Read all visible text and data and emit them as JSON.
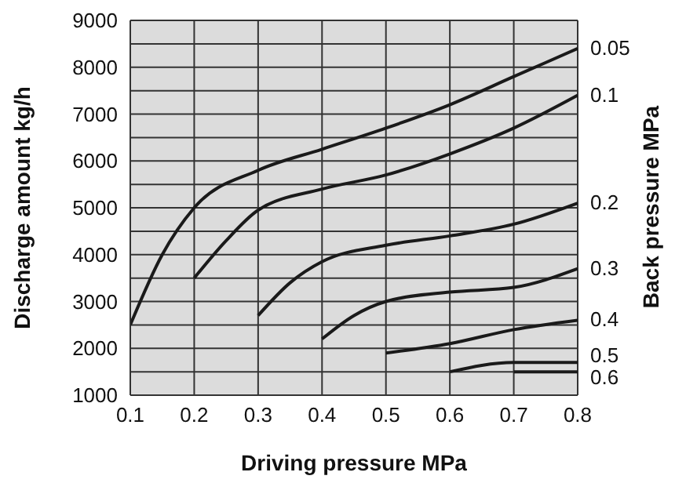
{
  "chart_data": {
    "type": "line",
    "xlabel": "Driving pressure MPa",
    "ylabel": "Discharge amount kg/h",
    "legend_title": "Back pressure MPa",
    "xlim": [
      0.1,
      0.8
    ],
    "xticks": [
      0.1,
      0.2,
      0.3,
      0.4,
      0.5,
      0.6,
      0.7,
      0.8
    ],
    "ylim": [
      1000,
      9000
    ],
    "yticks": [
      1000,
      {
        "value": 1500,
        "label": null
      },
      2000,
      {
        "value": 2500,
        "label": null
      },
      3000,
      {
        "value": 3500,
        "label": null
      },
      4000,
      {
        "value": 4500,
        "label": null
      },
      5000,
      {
        "value": 5500,
        "label": null
      },
      6000,
      {
        "value": 6500,
        "label": null
      },
      7000,
      {
        "value": 7500,
        "label": null
      },
      8000,
      {
        "value": 8500,
        "label": null
      },
      9000
    ],
    "grid": true,
    "marker": "none",
    "line_style": "solid",
    "series": [
      {
        "name": "0.05",
        "color": "#1a1a1a",
        "x": [
          0.1,
          0.15,
          0.2,
          0.3,
          0.4,
          0.5,
          0.6,
          0.7,
          0.8
        ],
        "values": [
          2500,
          4000,
          5000,
          5800,
          6250,
          6700,
          7200,
          7800,
          8400
        ]
      },
      {
        "name": "0.1",
        "color": "#1a1a1a",
        "x": [
          0.2,
          0.25,
          0.3,
          0.4,
          0.5,
          0.6,
          0.7,
          0.8
        ],
        "values": [
          3500,
          4300,
          4950,
          5400,
          5700,
          6150,
          6700,
          7400
        ]
      },
      {
        "name": "0.2",
        "color": "#1a1a1a",
        "x": [
          0.3,
          0.35,
          0.4,
          0.5,
          0.6,
          0.7,
          0.8
        ],
        "values": [
          2700,
          3400,
          3850,
          4200,
          4400,
          4650,
          5100
        ]
      },
      {
        "name": "0.3",
        "color": "#1a1a1a",
        "x": [
          0.4,
          0.45,
          0.5,
          0.6,
          0.7,
          0.8
        ],
        "values": [
          2200,
          2700,
          3000,
          3200,
          3300,
          3700
        ]
      },
      {
        "name": "0.4",
        "color": "#1a1a1a",
        "x": [
          0.5,
          0.6,
          0.7,
          0.8
        ],
        "values": [
          1900,
          2100,
          2400,
          2600
        ]
      },
      {
        "name": "0.5",
        "color": "#1a1a1a",
        "x": [
          0.6,
          0.7,
          0.8
        ],
        "values": [
          1500,
          1700,
          1700
        ]
      },
      {
        "name": "0.6",
        "color": "#1a1a1a",
        "x": [
          0.7,
          0.8
        ],
        "values": [
          1500,
          1500
        ]
      }
    ]
  }
}
